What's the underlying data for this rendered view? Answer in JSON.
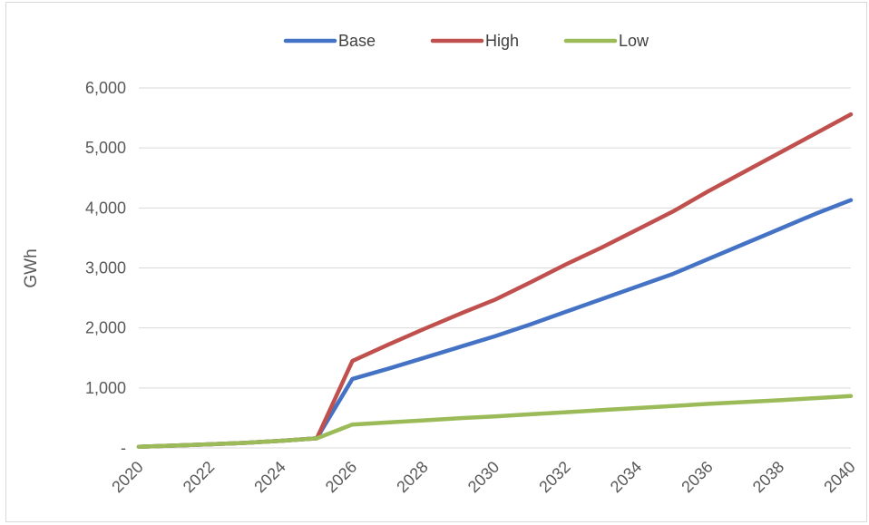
{
  "chart_data": {
    "type": "line",
    "title": "",
    "xlabel": "",
    "ylabel": "GWh",
    "x": [
      2020,
      2021,
      2022,
      2023,
      2024,
      2025,
      2026,
      2027,
      2028,
      2029,
      2030,
      2031,
      2032,
      2033,
      2034,
      2035,
      2036,
      2037,
      2038,
      2039,
      2040
    ],
    "x_tick_labels": [
      "2020",
      "2022",
      "2024",
      "2026",
      "2028",
      "2030",
      "2032",
      "2034",
      "2036",
      "2038",
      "2040"
    ],
    "y_tick_labels": [
      "-",
      "1,000",
      "2,000",
      "3,000",
      "4,000",
      "5,000",
      "6,000"
    ],
    "ylim": [
      0,
      6000
    ],
    "xlim": [
      2020,
      2040
    ],
    "grid": "horizontal",
    "legend_position": "top",
    "series": [
      {
        "name": "Base",
        "color": "#4472c4",
        "values": [
          20,
          40,
          60,
          85,
          120,
          160,
          1150,
          1320,
          1500,
          1680,
          1860,
          2060,
          2270,
          2480,
          2690,
          2900,
          3150,
          3400,
          3650,
          3900,
          4130
        ]
      },
      {
        "name": "High",
        "color": "#c0504d",
        "values": [
          20,
          40,
          60,
          85,
          120,
          160,
          1450,
          1720,
          1980,
          2230,
          2470,
          2760,
          3060,
          3340,
          3640,
          3940,
          4280,
          4600,
          4920,
          5240,
          5560
        ]
      },
      {
        "name": "Low",
        "color": "#9bbb59",
        "values": [
          20,
          40,
          60,
          85,
          120,
          160,
          390,
          425,
          460,
          495,
          525,
          560,
          595,
          630,
          665,
          700,
          735,
          765,
          795,
          830,
          865
        ]
      }
    ]
  }
}
